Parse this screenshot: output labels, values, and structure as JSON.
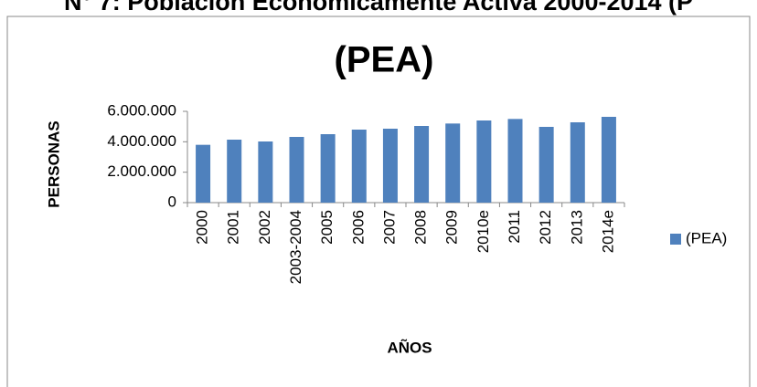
{
  "heading": "N° 7: Población Económicamente Activa 2000-2014 (P",
  "chart_data": {
    "type": "bar",
    "title": "(PEA)",
    "x_label": "AÑOS",
    "y_label": "PERSONAS",
    "categories": [
      "2000",
      "2001",
      "2002",
      "2003-2004",
      "2005",
      "2006",
      "2007",
      "2008",
      "2009",
      "2010e",
      "2011",
      "2012",
      "2013",
      "2014e"
    ],
    "series": [
      {
        "name": "(PEA)",
        "color": "#4f81bd",
        "values": [
          3800000,
          4140000,
          4020000,
          4320000,
          4500000,
          4800000,
          4860000,
          5040000,
          5200000,
          5400000,
          5500000,
          4980000,
          5280000,
          5640000
        ]
      }
    ],
    "ylim": [
      0,
      6000000
    ],
    "yticks": [
      0,
      {
        "value": 2000000,
        "label": "2.000.000"
      },
      {
        "value": 4000000,
        "label": "4.000.000"
      },
      {
        "value": 6000000,
        "label": "6.000.000"
      }
    ],
    "grid": false,
    "legend": "right"
  }
}
